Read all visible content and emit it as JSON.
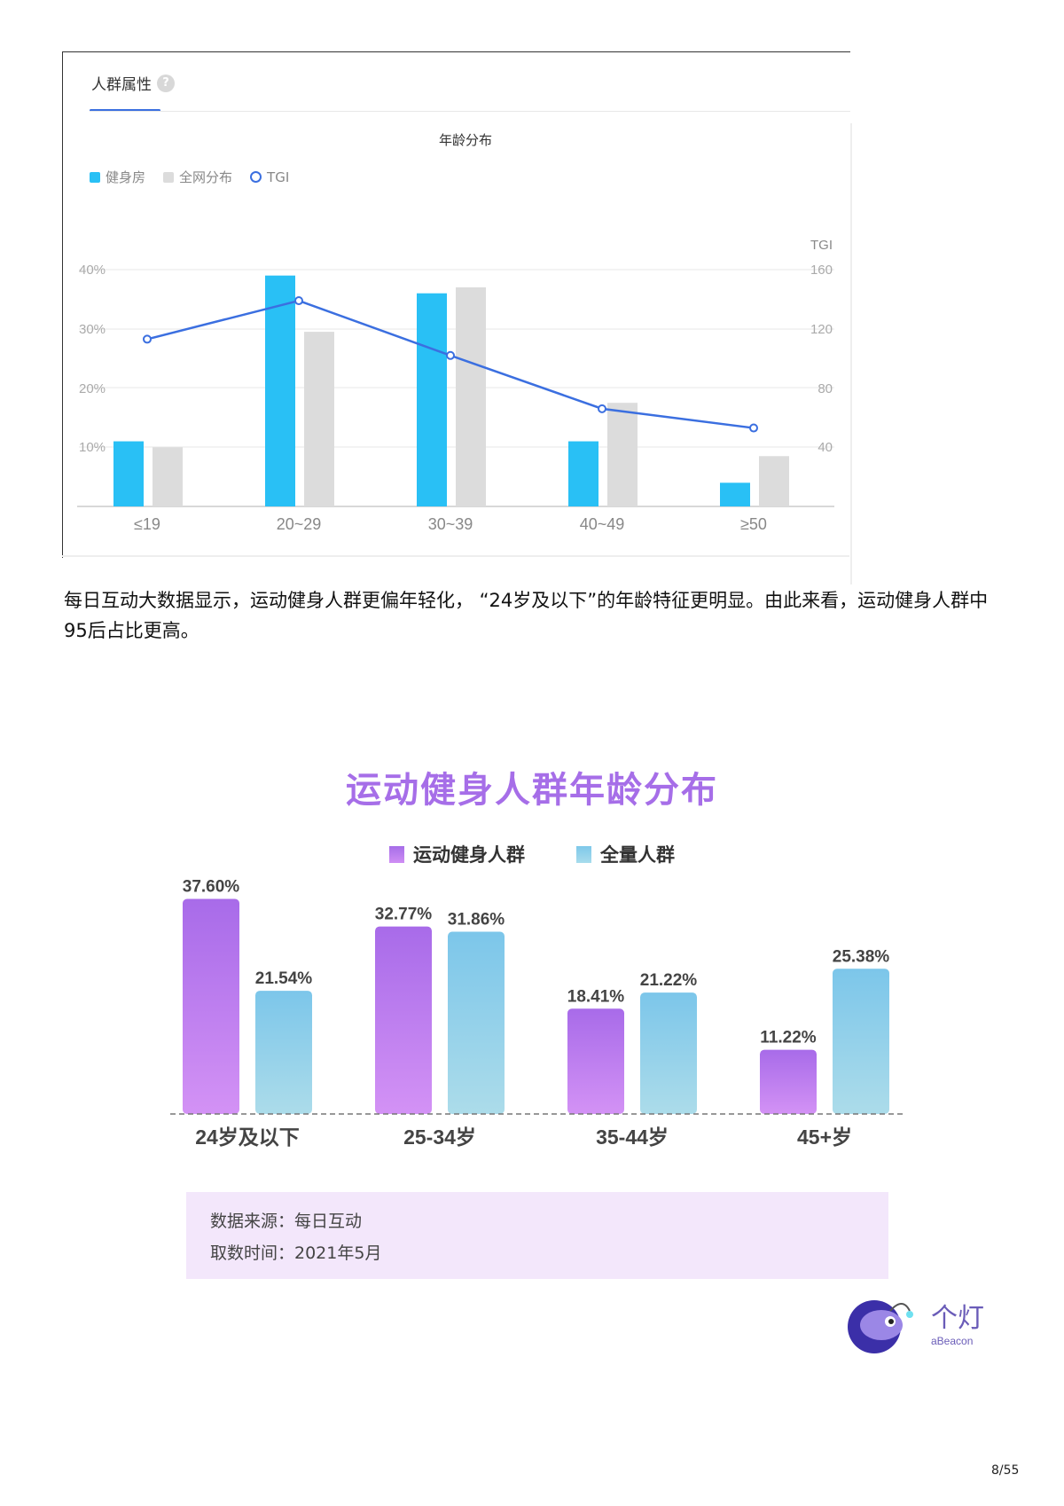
{
  "panel": {
    "tab_label": "人群属性",
    "help_icon": "?",
    "chart_title": "年龄分布",
    "legend": [
      {
        "label": "健身房",
        "color": "#29c0f5",
        "shape": "square"
      },
      {
        "label": "全网分布",
        "color": "#dcdcdc",
        "shape": "square"
      },
      {
        "label": "TGI",
        "color": "#3b6fe0",
        "shape": "ring"
      }
    ],
    "right_axis_title": "TGI"
  },
  "paragraph": "每日互动大数据显示，运动健身人群更偏年轻化，  “24岁及以下”的年龄特征更明显。由此来看，运动健身人群中95后占比更高。",
  "chart2": {
    "title": "运动健身人群年龄分布",
    "legend": [
      {
        "label": "运动健身人群",
        "color": "#b978ee"
      },
      {
        "label": "全量人群",
        "color": "#8fd0ec"
      }
    ]
  },
  "source": {
    "line1": "数据来源：每日互动",
    "line2": "取数时间：2021年5月"
  },
  "logo": {
    "cn": "个灯",
    "en": "aBeacon"
  },
  "page": "8/55",
  "chart_data": [
    {
      "type": "bar",
      "title": "年龄分布",
      "categories": [
        "≤19",
        "20~29",
        "30~39",
        "40~49",
        "≥50"
      ],
      "series": [
        {
          "name": "健身房",
          "type": "bar",
          "axis": "left",
          "color": "#29c0f5",
          "values": [
            11,
            39,
            36,
            11,
            4
          ]
        },
        {
          "name": "全网分布",
          "type": "bar",
          "axis": "left",
          "color": "#dcdcdc",
          "values": [
            10,
            29.5,
            37,
            17.5,
            8.5
          ]
        },
        {
          "name": "TGI",
          "type": "line",
          "axis": "right",
          "color": "#3b6fe0",
          "values": [
            113,
            139,
            102,
            66,
            53
          ]
        }
      ],
      "xlabel": "",
      "ylabel": "",
      "y_left_ticks": [
        "10%",
        "20%",
        "30%",
        "40%"
      ],
      "ylim_left": [
        0,
        40
      ],
      "y_right_title": "TGI",
      "y_right_ticks": [
        "40",
        "80",
        "120",
        "160"
      ],
      "ylim_right": [
        0,
        160
      ],
      "grid": true,
      "legend_position": "top-left"
    },
    {
      "type": "bar",
      "title": "运动健身人群年龄分布",
      "categories": [
        "24岁及以下",
        "25-34岁",
        "35-44岁",
        "45+岁"
      ],
      "series": [
        {
          "name": "运动健身人群",
          "values": [
            37.6,
            32.77,
            18.41,
            11.22
          ],
          "labels": [
            "37.60%",
            "32.77%",
            "18.41%",
            "11.22%"
          ]
        },
        {
          "name": "全量人群",
          "values": [
            21.54,
            31.86,
            21.22,
            25.38
          ],
          "labels": [
            "21.54%",
            "31.86%",
            "21.22%",
            "25.38%"
          ]
        }
      ],
      "xlabel": "",
      "ylabel": "",
      "ylim": [
        0,
        40
      ],
      "grid": false,
      "legend_position": "top-center"
    }
  ]
}
